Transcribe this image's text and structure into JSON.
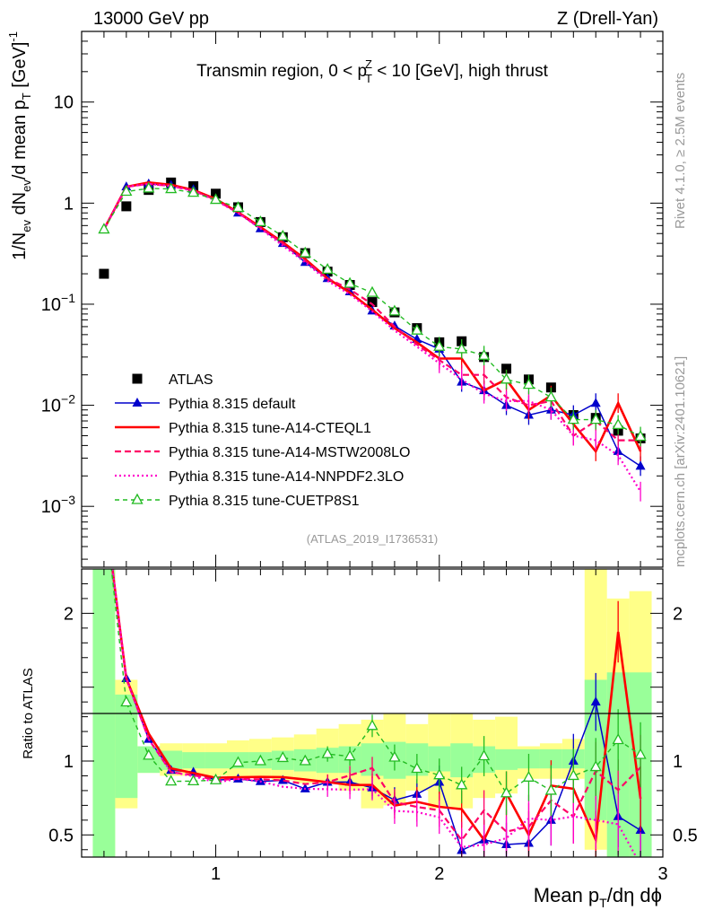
{
  "header": {
    "left": "13000 GeV pp",
    "right": "Z (Drell-Yan)"
  },
  "side_labels": {
    "rivet": "Rivet 4.1.0, ≥ 2.5M events",
    "mcplots": "mcplots.cern.ch [arXiv:2401.10621]"
  },
  "chart_data": {
    "type": "line",
    "title": "Transmin region, 0 < pTZ < 10 [GeV], high thrust",
    "title_parts": {
      "pre": "Transmin region, 0 < p",
      "sup": "Z",
      "sub": "T",
      "post": " < 10 [GeV], high thrust"
    },
    "analysis_id": "(ATLAS_2019_I1736531)",
    "xlabel": "Mean pT/dη dφ",
    "xlabel_parts": {
      "pre": "Mean p",
      "sub": "T",
      "post": "/dη dϕ"
    },
    "ylabel": "1/Nev dNev/d mean pT [GeV]-1",
    "ylabel_parts": {
      "a": "1/N",
      "a_sub": "ev",
      "b": " dN",
      "b_sub": "ev",
      "c": "/d mean p",
      "c_sub": "T",
      "d": " [GeV]",
      "d_sup": "-1"
    },
    "ratio_ylabel": "Ratio to ATLAS",
    "xlim": [
      0.4,
      3.0
    ],
    "ylim": [
      0.00025,
      50
    ],
    "ratio_ylim": [
      0.35,
      2.3
    ],
    "yscale": "log",
    "x_ticks": [
      1,
      2,
      3
    ],
    "x_tick_labels": [
      "1",
      "2",
      "3"
    ],
    "y_tick_labels": [
      {
        "value": 10,
        "base": "10",
        "exp": ""
      },
      {
        "value": 1,
        "base": "1",
        "exp": ""
      },
      {
        "value": 0.1,
        "base": "10",
        "exp": "−1"
      },
      {
        "value": 0.01,
        "base": "10",
        "exp": "−2"
      },
      {
        "value": 0.001,
        "base": "10",
        "exp": "−3"
      }
    ],
    "ratio_ticks": [
      0.5,
      1,
      2
    ],
    "ratio_tick_labels": [
      "0.5",
      "1",
      "2"
    ],
    "x": [
      0.5,
      0.6,
      0.7,
      0.8,
      0.9,
      1.0,
      1.1,
      1.2,
      1.3,
      1.4,
      1.5,
      1.6,
      1.7,
      1.8,
      1.9,
      2.0,
      2.1,
      2.2,
      2.3,
      2.4,
      2.5,
      2.6,
      2.7,
      2.8,
      2.9
    ],
    "band_edges": [
      0.45,
      0.55,
      0.65,
      0.75,
      0.85,
      0.95,
      1.05,
      1.15,
      1.25,
      1.35,
      1.45,
      1.55,
      1.65,
      1.75,
      1.85,
      1.95,
      2.05,
      2.15,
      2.25,
      2.35,
      2.45,
      2.55,
      2.65,
      2.75,
      2.85,
      2.95
    ],
    "band_green": [
      [
        0.3,
        2.3
      ],
      [
        0.75,
        1.45
      ],
      [
        0.92,
        1.1
      ],
      [
        0.94,
        1.07
      ],
      [
        0.95,
        1.06
      ],
      [
        0.95,
        1.06
      ],
      [
        0.95,
        1.06
      ],
      [
        0.95,
        1.06
      ],
      [
        0.94,
        1.07
      ],
      [
        0.93,
        1.08
      ],
      [
        0.92,
        1.09
      ],
      [
        0.92,
        1.1
      ],
      [
        0.9,
        1.12
      ],
      [
        0.88,
        1.13
      ],
      [
        0.9,
        1.12
      ],
      [
        0.93,
        1.1
      ],
      [
        0.89,
        1.12
      ],
      [
        0.92,
        1.1
      ],
      [
        0.94,
        1.08
      ],
      [
        0.95,
        1.08
      ],
      [
        0.95,
        1.08
      ],
      [
        0.95,
        1.08
      ],
      [
        0.6,
        1.55
      ],
      [
        0.3,
        1.6
      ],
      [
        0.3,
        1.6
      ]
    ],
    "band_yellow": [
      [
        0.3,
        2.3
      ],
      [
        0.68,
        1.55
      ],
      [
        0.92,
        1.1
      ],
      [
        0.9,
        1.12
      ],
      [
        0.9,
        1.12
      ],
      [
        0.9,
        1.12
      ],
      [
        0.89,
        1.14
      ],
      [
        0.89,
        1.15
      ],
      [
        0.87,
        1.16
      ],
      [
        0.85,
        1.18
      ],
      [
        0.85,
        1.22
      ],
      [
        0.8,
        1.25
      ],
      [
        0.68,
        1.28
      ],
      [
        0.7,
        1.32
      ],
      [
        0.8,
        1.25
      ],
      [
        0.68,
        1.32
      ],
      [
        0.68,
        1.32
      ],
      [
        0.75,
        1.28
      ],
      [
        0.78,
        1.3
      ],
      [
        0.88,
        1.1
      ],
      [
        0.88,
        1.12
      ],
      [
        0.88,
        1.15
      ],
      [
        0.4,
        2.3
      ],
      [
        0.3,
        2.1
      ],
      [
        0.3,
        2.15
      ]
    ],
    "atlas_values": [
      0.2,
      0.93,
      1.35,
      1.6,
      1.47,
      1.24,
      0.91,
      0.65,
      0.46,
      0.32,
      0.21,
      0.155,
      0.105,
      0.083,
      0.058,
      0.042,
      0.043,
      0.03,
      0.023,
      0.018,
      0.015,
      0.008,
      0.0075,
      0.0056,
      0.0047
    ],
    "series": [
      {
        "name": "ATLAS",
        "color": "#000000",
        "style": "points",
        "values": [
          0.2,
          0.93,
          1.35,
          1.6,
          1.47,
          1.24,
          0.91,
          0.65,
          0.46,
          0.32,
          0.21,
          0.155,
          0.105,
          0.083,
          0.058,
          0.042,
          0.043,
          0.03,
          0.023,
          0.018,
          0.015,
          0.008,
          0.0075,
          0.0056,
          0.0047
        ]
      },
      {
        "name": "Pythia 8.315 default",
        "color": "#0000cc",
        "style": "solid-filled-triangle",
        "values": [
          0.55,
          1.45,
          1.55,
          1.5,
          1.36,
          1.08,
          0.8,
          0.56,
          0.4,
          0.26,
          0.18,
          0.133,
          0.086,
          0.061,
          0.045,
          0.036,
          0.017,
          0.014,
          0.01,
          0.008,
          0.009,
          0.008,
          0.0105,
          0.0035,
          0.0025
        ]
      },
      {
        "name": "Pythia 8.315 tune-A14-CTEQL1",
        "color": "#ff0000",
        "style": "thick-solid",
        "values": [
          0.55,
          1.45,
          1.6,
          1.52,
          1.35,
          1.1,
          0.81,
          0.58,
          0.41,
          0.28,
          0.18,
          0.13,
          0.088,
          0.058,
          0.042,
          0.029,
          0.029,
          0.014,
          0.018,
          0.009,
          0.0125,
          0.0065,
          0.0035,
          0.0105,
          0.0035
        ]
      },
      {
        "name": "Pythia 8.315 tune-A14-MSTW2008LO",
        "color": "#ff0066",
        "style": "dashed",
        "values": [
          0.55,
          1.45,
          1.55,
          1.48,
          1.33,
          1.08,
          0.8,
          0.57,
          0.4,
          0.27,
          0.18,
          0.14,
          0.1,
          0.06,
          0.04,
          0.028,
          0.02,
          0.02,
          0.012,
          0.01,
          0.011,
          0.005,
          0.007,
          0.0045,
          0.0045
        ]
      },
      {
        "name": "Pythia 8.315 tune-A14-NNPDF2.3LO",
        "color": "#ff00cc",
        "style": "dotted",
        "values": [
          0.55,
          1.45,
          1.55,
          1.48,
          1.32,
          1.06,
          0.8,
          0.56,
          0.38,
          0.26,
          0.17,
          0.125,
          0.085,
          0.055,
          0.038,
          0.026,
          0.018,
          0.013,
          0.011,
          0.011,
          0.009,
          0.005,
          0.0045,
          0.0032,
          0.0014
        ]
      },
      {
        "name": "Pythia 8.315 tune-CUETP8S1",
        "color": "#22bb22",
        "style": "dashed-open-triangle",
        "values": [
          0.55,
          1.3,
          1.4,
          1.38,
          1.27,
          1.08,
          0.9,
          0.65,
          0.47,
          0.32,
          0.22,
          0.16,
          0.13,
          0.085,
          0.055,
          0.038,
          0.036,
          0.031,
          0.018,
          0.016,
          0.012,
          0.0072,
          0.0072,
          0.0064,
          0.0049
        ]
      }
    ]
  }
}
